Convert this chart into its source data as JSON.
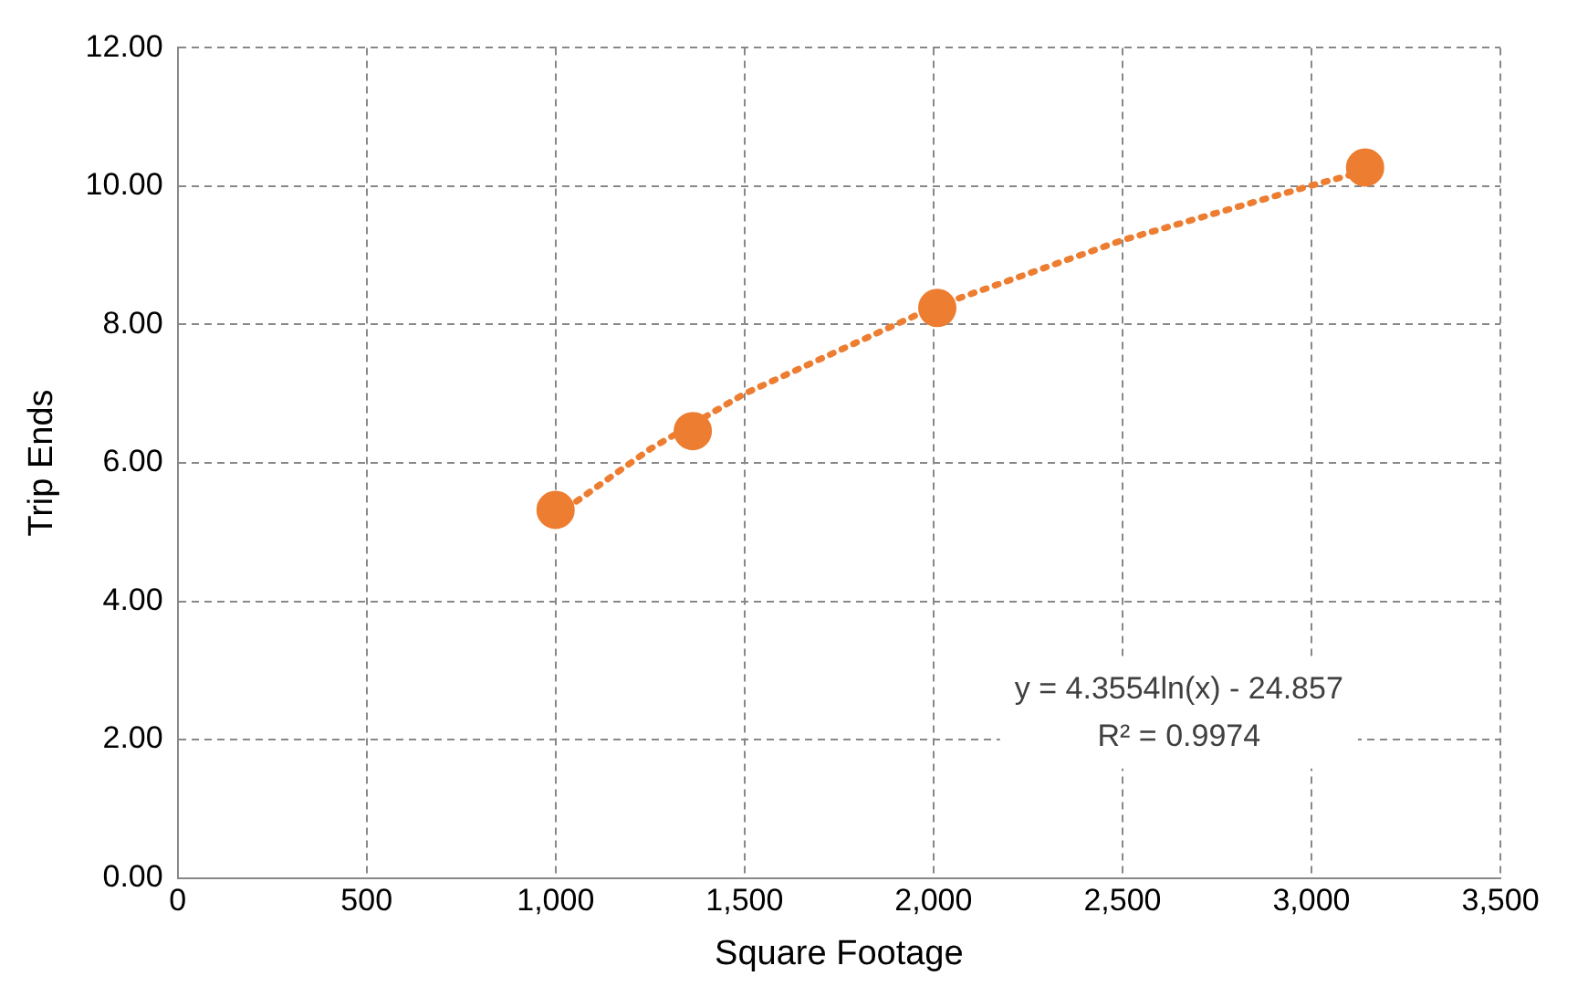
{
  "chart_data": {
    "type": "scatter",
    "xlabel": "Square Footage",
    "ylabel": "Trip Ends",
    "xlim": [
      0,
      3500
    ],
    "xticks": [
      {
        "value": 0,
        "label": "0"
      },
      {
        "value": 500,
        "label": "500"
      },
      {
        "value": 1000,
        "label": "1,000"
      },
      {
        "value": 1500,
        "label": "1,500"
      },
      {
        "value": 2000,
        "label": "2,000"
      },
      {
        "value": 2500,
        "label": "2,500"
      },
      {
        "value": 3000,
        "label": "3,000"
      },
      {
        "value": 3500,
        "label": "3,500"
      }
    ],
    "ylim": [
      0,
      12
    ],
    "yticks": [
      {
        "value": 0,
        "label": "0.00"
      },
      {
        "value": 2,
        "label": "2.00"
      },
      {
        "value": 4,
        "label": "4.00"
      },
      {
        "value": 6,
        "label": "6.00"
      },
      {
        "value": 8,
        "label": "8.00"
      },
      {
        "value": 10,
        "label": "10.00"
      },
      {
        "value": 12,
        "label": "12.00"
      }
    ],
    "grid": true,
    "legend": false,
    "series": [
      {
        "type": "scatter",
        "color": "#ed7d31",
        "marker": "circle",
        "x": [
          1000,
          1363,
          2010,
          3142
        ],
        "values": [
          5.32,
          6.46,
          8.24,
          10.27
        ]
      },
      {
        "type": "line",
        "color": "#ed7d31",
        "marker": "none",
        "line_style": "dotted",
        "x": [
          1000,
          1250,
          1500,
          2000,
          2500,
          3000,
          3142
        ],
        "values": [
          5.23,
          6.2,
          7.0,
          8.25,
          9.22,
          10.01,
          10.22
        ]
      }
    ],
    "annotations": [
      "y = 4.3554ln(x) - 24.857",
      "R² = 0.9974"
    ]
  }
}
